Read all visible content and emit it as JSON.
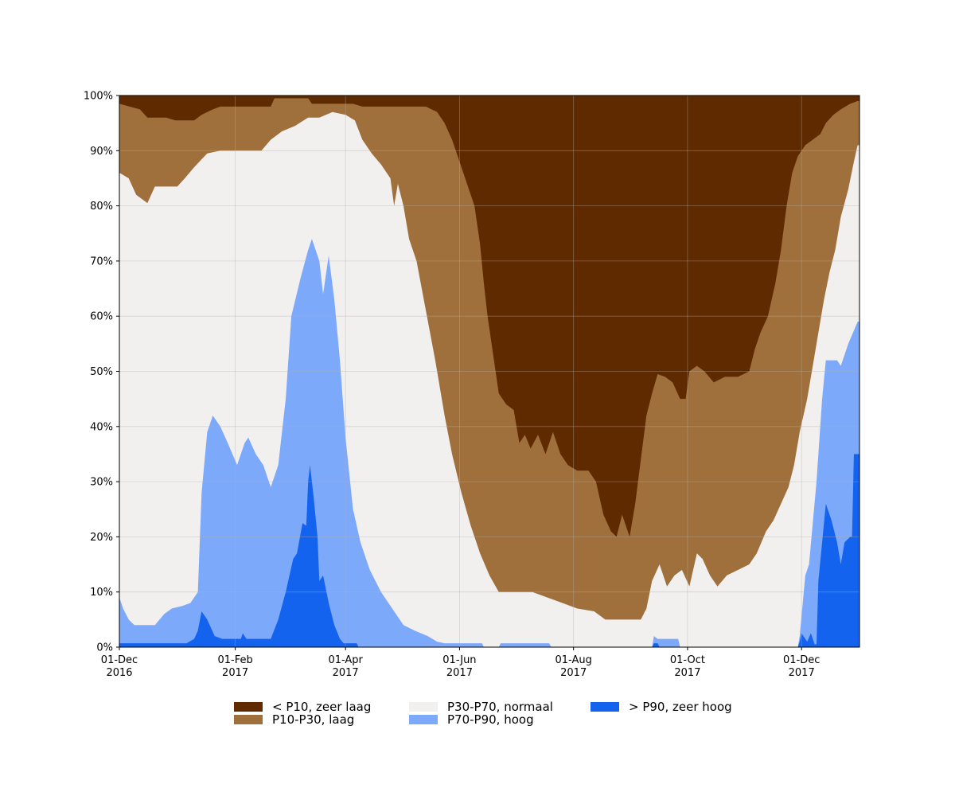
{
  "chart_data": {
    "type": "area",
    "stacked": true,
    "stack_order": [
      "gt_p90",
      "p70_p90",
      "p30_p70",
      "p10_p30",
      "lt_p10"
    ],
    "x_start": "2016-12-01",
    "x_end": "2017-12-31",
    "ylim": [
      0,
      100
    ],
    "yticks": [
      "0%",
      "10%",
      "20%",
      "30%",
      "40%",
      "50%",
      "60%",
      "70%",
      "80%",
      "90%",
      "100%"
    ],
    "xticks": [
      {
        "date": "2016-12-01",
        "label1": "01-Dec",
        "label2": "2016"
      },
      {
        "date": "2017-02-01",
        "label1": "01-Feb",
        "label2": "2017"
      },
      {
        "date": "2017-04-01",
        "label1": "01-Apr",
        "label2": "2017"
      },
      {
        "date": "2017-06-01",
        "label1": "01-Jun",
        "label2": "2017"
      },
      {
        "date": "2017-08-01",
        "label1": "01-Aug",
        "label2": "2017"
      },
      {
        "date": "2017-10-01",
        "label1": "01-Oct",
        "label2": "2017"
      },
      {
        "date": "2017-12-01",
        "label1": "01-Dec",
        "label2": "2017"
      }
    ],
    "grid": true,
    "legend_position": "bottom",
    "series": [
      {
        "key": "lt_p10",
        "name": "< P10, zeer laag",
        "color": "#5f2a00"
      },
      {
        "key": "p10_p30",
        "name": "P10-P30, laag",
        "color": "#a0703c"
      },
      {
        "key": "p30_p70",
        "name": "P30-P70, normaal",
        "color": "#f2f0ef"
      },
      {
        "key": "p70_p90",
        "name": "P70-P90, hoog",
        "color": "#7da9fb"
      },
      {
        "key": "gt_p90",
        "name": "> P90, zeer hoog",
        "color": "#1463ee"
      }
    ],
    "cumulative_upper_bounds": {
      "gt_p90": [
        [
          "2016-12-01",
          0.7
        ],
        [
          "2017-01-06",
          0.7
        ],
        [
          "2017-01-10",
          1.5
        ],
        [
          "2017-01-12",
          3.0
        ],
        [
          "2017-01-14",
          6.5
        ],
        [
          "2017-01-17",
          5.0
        ],
        [
          "2017-01-21",
          2.0
        ],
        [
          "2017-01-25",
          1.5
        ],
        [
          "2017-02-04",
          1.5
        ],
        [
          "2017-02-05",
          2.5
        ],
        [
          "2017-02-07",
          1.5
        ],
        [
          "2017-02-20",
          1.5
        ],
        [
          "2017-02-24",
          5.0
        ],
        [
          "2017-02-28",
          10.0
        ],
        [
          "2017-03-04",
          16.0
        ],
        [
          "2017-03-06",
          17.0
        ],
        [
          "2017-03-09",
          22.5
        ],
        [
          "2017-03-11",
          22.0
        ],
        [
          "2017-03-12",
          30.0
        ],
        [
          "2017-03-13",
          33.0
        ],
        [
          "2017-03-15",
          27.0
        ],
        [
          "2017-03-17",
          20.0
        ],
        [
          "2017-03-18",
          12.0
        ],
        [
          "2017-03-20",
          13.0
        ],
        [
          "2017-03-23",
          8.0
        ],
        [
          "2017-03-26",
          4.0
        ],
        [
          "2017-03-29",
          1.5
        ],
        [
          "2017-03-31",
          0.7
        ],
        [
          "2017-04-07",
          0.7
        ],
        [
          "2017-04-08",
          0.0
        ],
        [
          "2017-09-12",
          0.0
        ],
        [
          "2017-09-13",
          0.7
        ],
        [
          "2017-09-15",
          0.7
        ],
        [
          "2017-09-16",
          0.0
        ],
        [
          "2017-11-29",
          0.0
        ],
        [
          "2017-11-30",
          1.0
        ],
        [
          "2017-12-01",
          2.5
        ],
        [
          "2017-12-04",
          1.0
        ],
        [
          "2017-12-06",
          2.5
        ],
        [
          "2017-12-08",
          0.5
        ],
        [
          "2017-12-09",
          0.5
        ],
        [
          "2017-12-10",
          12.0
        ],
        [
          "2017-12-12",
          19.0
        ],
        [
          "2017-12-14",
          26.0
        ],
        [
          "2017-12-17",
          23.0
        ],
        [
          "2017-12-20",
          19.0
        ],
        [
          "2017-12-22",
          15.0
        ],
        [
          "2017-12-24",
          19.0
        ],
        [
          "2017-12-27",
          20.0
        ],
        [
          "2017-12-28",
          20.0
        ],
        [
          "2017-12-29",
          35.0
        ],
        [
          "2017-12-31",
          35.0
        ]
      ],
      "p70_p90": [
        [
          "2016-12-01",
          9.0
        ],
        [
          "2016-12-03",
          7.0
        ],
        [
          "2016-12-06",
          5.0
        ],
        [
          "2016-12-09",
          4.0
        ],
        [
          "2016-12-20",
          4.0
        ],
        [
          "2016-12-25",
          6.0
        ],
        [
          "2016-12-29",
          7.0
        ],
        [
          "2017-01-04",
          7.5
        ],
        [
          "2017-01-08",
          8.0
        ],
        [
          "2017-01-12",
          10.0
        ],
        [
          "2017-01-14",
          28.0
        ],
        [
          "2017-01-17",
          39.0
        ],
        [
          "2017-01-20",
          42.0
        ],
        [
          "2017-01-24",
          40.0
        ],
        [
          "2017-01-28",
          37.0
        ],
        [
          "2017-02-02",
          33.0
        ],
        [
          "2017-02-06",
          37.0
        ],
        [
          "2017-02-08",
          38.0
        ],
        [
          "2017-02-12",
          35.0
        ],
        [
          "2017-02-16",
          33.0
        ],
        [
          "2017-02-20",
          29.0
        ],
        [
          "2017-02-24",
          33.0
        ],
        [
          "2017-02-28",
          45.0
        ],
        [
          "2017-03-03",
          60.0
        ],
        [
          "2017-03-08",
          67.0
        ],
        [
          "2017-03-12",
          72.0
        ],
        [
          "2017-03-14",
          74.0
        ],
        [
          "2017-03-18",
          70.0
        ],
        [
          "2017-03-20",
          64.0
        ],
        [
          "2017-03-23",
          71.0
        ],
        [
          "2017-03-26",
          63.0
        ],
        [
          "2017-03-29",
          52.0
        ],
        [
          "2017-04-01",
          38.0
        ],
        [
          "2017-04-05",
          25.0
        ],
        [
          "2017-04-09",
          19.0
        ],
        [
          "2017-04-14",
          14.0
        ],
        [
          "2017-04-20",
          10.0
        ],
        [
          "2017-04-26",
          7.0
        ],
        [
          "2017-05-02",
          4.0
        ],
        [
          "2017-05-08",
          3.0
        ],
        [
          "2017-05-15",
          2.0
        ],
        [
          "2017-05-20",
          1.0
        ],
        [
          "2017-05-24",
          0.7
        ],
        [
          "2017-06-13",
          0.7
        ],
        [
          "2017-06-14",
          0.0
        ],
        [
          "2017-06-22",
          0.0
        ],
        [
          "2017-06-23",
          0.7
        ],
        [
          "2017-07-19",
          0.7
        ],
        [
          "2017-07-20",
          0.0
        ],
        [
          "2017-09-12",
          0.0
        ],
        [
          "2017-09-13",
          2.0
        ],
        [
          "2017-09-15",
          1.5
        ],
        [
          "2017-09-26",
          1.5
        ],
        [
          "2017-09-27",
          0.0
        ],
        [
          "2017-11-29",
          0.0
        ],
        [
          "2017-11-30",
          2.0
        ],
        [
          "2017-12-03",
          13.0
        ],
        [
          "2017-12-05",
          15.0
        ],
        [
          "2017-12-09",
          30.0
        ],
        [
          "2017-12-12",
          45.0
        ],
        [
          "2017-12-14",
          52.0
        ],
        [
          "2017-12-20",
          52.0
        ],
        [
          "2017-12-22",
          51.0
        ],
        [
          "2017-12-26",
          55.0
        ],
        [
          "2017-12-31",
          59.0
        ]
      ],
      "p30_p70": [
        [
          "2016-12-01",
          86.0
        ],
        [
          "2016-12-06",
          85.0
        ],
        [
          "2016-12-10",
          82.0
        ],
        [
          "2016-12-16",
          80.5
        ],
        [
          "2016-12-20",
          83.5
        ],
        [
          "2016-12-26",
          83.5
        ],
        [
          "2017-01-01",
          83.5
        ],
        [
          "2017-01-05",
          85.0
        ],
        [
          "2017-01-10",
          87.0
        ],
        [
          "2017-01-17",
          89.5
        ],
        [
          "2017-01-24",
          90.0
        ],
        [
          "2017-02-08",
          90.0
        ],
        [
          "2017-02-15",
          90.0
        ],
        [
          "2017-02-20",
          92.0
        ],
        [
          "2017-02-26",
          93.5
        ],
        [
          "2017-03-05",
          94.5
        ],
        [
          "2017-03-12",
          96.0
        ],
        [
          "2017-03-18",
          96.0
        ],
        [
          "2017-03-25",
          97.0
        ],
        [
          "2017-04-01",
          96.5
        ],
        [
          "2017-04-06",
          95.5
        ],
        [
          "2017-04-10",
          92.0
        ],
        [
          "2017-04-15",
          89.5
        ],
        [
          "2017-04-20",
          87.5
        ],
        [
          "2017-04-25",
          85.0
        ],
        [
          "2017-04-27",
          80.0
        ],
        [
          "2017-04-29",
          84.0
        ],
        [
          "2017-05-02",
          80.0
        ],
        [
          "2017-05-05",
          74.0
        ],
        [
          "2017-05-09",
          70.0
        ],
        [
          "2017-05-14",
          61.0
        ],
        [
          "2017-05-19",
          52.0
        ],
        [
          "2017-05-24",
          42.0
        ],
        [
          "2017-05-28",
          35.0
        ],
        [
          "2017-06-02",
          28.0
        ],
        [
          "2017-06-07",
          22.0
        ],
        [
          "2017-06-12",
          17.0
        ],
        [
          "2017-06-17",
          13.0
        ],
        [
          "2017-06-22",
          10.0
        ],
        [
          "2017-07-01",
          10.0
        ],
        [
          "2017-07-10",
          10.0
        ],
        [
          "2017-07-18",
          9.0
        ],
        [
          "2017-07-26",
          8.0
        ],
        [
          "2017-08-03",
          7.0
        ],
        [
          "2017-08-12",
          6.5
        ],
        [
          "2017-08-18",
          5.0
        ],
        [
          "2017-08-27",
          5.0
        ],
        [
          "2017-09-06",
          5.0
        ],
        [
          "2017-09-09",
          7.0
        ],
        [
          "2017-09-12",
          12.0
        ],
        [
          "2017-09-16",
          15.0
        ],
        [
          "2017-09-20",
          11.0
        ],
        [
          "2017-09-24",
          13.0
        ],
        [
          "2017-09-28",
          14.0
        ],
        [
          "2017-10-02",
          11.0
        ],
        [
          "2017-10-06",
          17.0
        ],
        [
          "2017-10-09",
          16.0
        ],
        [
          "2017-10-13",
          13.0
        ],
        [
          "2017-10-17",
          11.0
        ],
        [
          "2017-10-22",
          13.0
        ],
        [
          "2017-10-28",
          14.0
        ],
        [
          "2017-11-03",
          15.0
        ],
        [
          "2017-11-07",
          17.0
        ],
        [
          "2017-11-12",
          21.0
        ],
        [
          "2017-11-16",
          23.0
        ],
        [
          "2017-11-20",
          26.0
        ],
        [
          "2017-11-24",
          29.0
        ],
        [
          "2017-11-27",
          33.0
        ],
        [
          "2017-11-30",
          39.0
        ],
        [
          "2017-12-04",
          45.0
        ],
        [
          "2017-12-07",
          51.0
        ],
        [
          "2017-12-10",
          57.0
        ],
        [
          "2017-12-13",
          63.0
        ],
        [
          "2017-12-16",
          68.0
        ],
        [
          "2017-12-19",
          72.0
        ],
        [
          "2017-12-22",
          78.0
        ],
        [
          "2017-12-26",
          83.0
        ],
        [
          "2017-12-29",
          88.0
        ],
        [
          "2017-12-31",
          91.0
        ]
      ],
      "p10_p30": [
        [
          "2016-12-01",
          98.5
        ],
        [
          "2016-12-12",
          97.5
        ],
        [
          "2016-12-16",
          96.0
        ],
        [
          "2016-12-26",
          96.0
        ],
        [
          "2016-12-31",
          95.5
        ],
        [
          "2017-01-10",
          95.5
        ],
        [
          "2017-01-14",
          96.5
        ],
        [
          "2017-01-20",
          97.5
        ],
        [
          "2017-01-24",
          98.0
        ],
        [
          "2017-02-20",
          98.0
        ],
        [
          "2017-02-22",
          99.5
        ],
        [
          "2017-03-12",
          99.5
        ],
        [
          "2017-03-14",
          98.5
        ],
        [
          "2017-04-05",
          98.5
        ],
        [
          "2017-04-10",
          98.0
        ],
        [
          "2017-05-14",
          98.0
        ],
        [
          "2017-05-20",
          97.0
        ],
        [
          "2017-05-24",
          95.0
        ],
        [
          "2017-05-28",
          92.0
        ],
        [
          "2017-06-01",
          88.0
        ],
        [
          "2017-06-05",
          84.0
        ],
        [
          "2017-06-09",
          80.0
        ],
        [
          "2017-06-12",
          73.0
        ],
        [
          "2017-06-14",
          66.0
        ],
        [
          "2017-06-16",
          60.0
        ],
        [
          "2017-06-19",
          53.0
        ],
        [
          "2017-06-22",
          46.0
        ],
        [
          "2017-06-26",
          44.0
        ],
        [
          "2017-06-30",
          43.0
        ],
        [
          "2017-07-03",
          37.0
        ],
        [
          "2017-07-06",
          38.5
        ],
        [
          "2017-07-09",
          36.0
        ],
        [
          "2017-07-13",
          38.5
        ],
        [
          "2017-07-17",
          35.0
        ],
        [
          "2017-07-21",
          39.0
        ],
        [
          "2017-07-25",
          35.0
        ],
        [
          "2017-07-29",
          33.0
        ],
        [
          "2017-08-03",
          32.0
        ],
        [
          "2017-08-09",
          32.0
        ],
        [
          "2017-08-13",
          30.0
        ],
        [
          "2017-08-17",
          24.0
        ],
        [
          "2017-08-21",
          21.0
        ],
        [
          "2017-08-24",
          20.0
        ],
        [
          "2017-08-27",
          24.0
        ],
        [
          "2017-08-31",
          20.0
        ],
        [
          "2017-09-03",
          26.0
        ],
        [
          "2017-09-06",
          34.0
        ],
        [
          "2017-09-09",
          42.0
        ],
        [
          "2017-09-12",
          46.0
        ],
        [
          "2017-09-15",
          49.5
        ],
        [
          "2017-09-19",
          49.0
        ],
        [
          "2017-09-23",
          48.0
        ],
        [
          "2017-09-27",
          45.0
        ],
        [
          "2017-09-30",
          45.0
        ],
        [
          "2017-10-02",
          50.0
        ],
        [
          "2017-10-06",
          51.0
        ],
        [
          "2017-10-10",
          50.0
        ],
        [
          "2017-10-15",
          48.0
        ],
        [
          "2017-10-21",
          49.0
        ],
        [
          "2017-10-28",
          49.0
        ],
        [
          "2017-11-03",
          50.0
        ],
        [
          "2017-11-06",
          54.0
        ],
        [
          "2017-11-09",
          57.0
        ],
        [
          "2017-11-13",
          60.0
        ],
        [
          "2017-11-17",
          66.0
        ],
        [
          "2017-11-20",
          72.0
        ],
        [
          "2017-11-23",
          80.0
        ],
        [
          "2017-11-26",
          86.0
        ],
        [
          "2017-11-29",
          89.0
        ],
        [
          "2017-12-03",
          91.0
        ],
        [
          "2017-12-07",
          92.0
        ],
        [
          "2017-12-11",
          93.0
        ],
        [
          "2017-12-14",
          95.0
        ],
        [
          "2017-12-18",
          96.5
        ],
        [
          "2017-12-22",
          97.5
        ],
        [
          "2017-12-27",
          98.5
        ],
        [
          "2017-12-31",
          99.0
        ]
      ],
      "lt_p10": [
        [
          "2016-12-01",
          100.0
        ],
        [
          "2017-12-31",
          100.0
        ]
      ]
    }
  }
}
